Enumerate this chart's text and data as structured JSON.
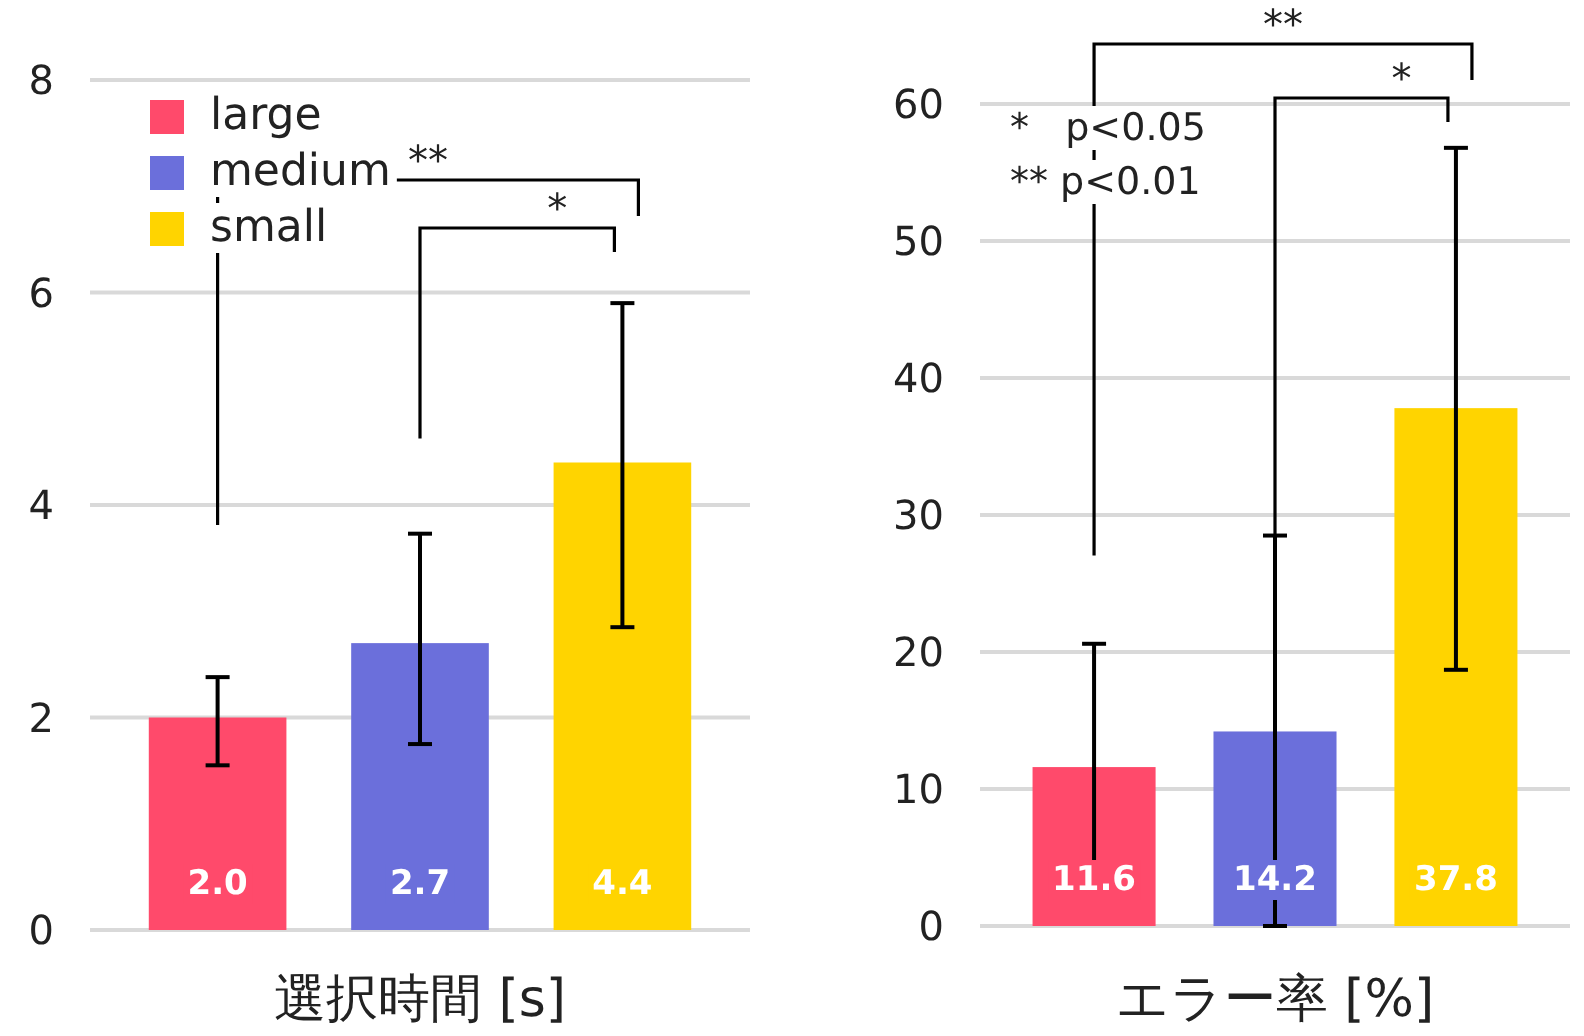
{
  "chart_data": [
    {
      "type": "bar",
      "xlabel": "選択時間 [s]",
      "categories": [
        null
      ],
      "ylim": [
        0,
        8
      ],
      "yticks": [
        0,
        2,
        4,
        6,
        8
      ],
      "grid": "y",
      "legend": "top left",
      "series": [
        {
          "name": "large",
          "color": "#ff4a6b",
          "values": [
            2.0
          ],
          "value_labels": [
            "2.0"
          ],
          "errors": [
            [
              1.55,
              2.38
            ]
          ]
        },
        {
          "name": "medium",
          "color": "#6b6fdb",
          "values": [
            2.7
          ],
          "value_labels": [
            "2.7"
          ],
          "errors": [
            [
              1.75,
              3.73
            ]
          ]
        },
        {
          "name": "small",
          "color": "#ffd400",
          "values": [
            4.4
          ],
          "value_labels": [
            "4.4"
          ],
          "errors": [
            [
              2.85,
              5.9
            ]
          ]
        }
      ],
      "annotations": [
        "**",
        "*"
      ]
    },
    {
      "type": "bar",
      "xlabel": "エラー率 [%]",
      "categories": [
        null
      ],
      "ylim": [
        0,
        60
      ],
      "yticks": [
        0,
        10,
        20,
        30,
        40,
        50,
        60
      ],
      "grid": "y",
      "series": [
        {
          "color": "#ff4a6b",
          "values": [
            11.6
          ],
          "value_labels": [
            "11.6"
          ],
          "errors": [
            [
              2.4,
              20.6
            ]
          ]
        },
        {
          "color": "#6b6fdb",
          "values": [
            14.2
          ],
          "value_labels": [
            "14.2"
          ],
          "errors": [
            [
              0,
              28.5
            ]
          ]
        },
        {
          "color": "#ffd400",
          "values": [
            37.8
          ],
          "value_labels": [
            "37.8"
          ],
          "errors": [
            [
              18.7,
              56.8
            ]
          ]
        }
      ],
      "annotations": [
        "**",
        "*",
        "*   p<0.05",
        "** p<0.01"
      ]
    }
  ]
}
